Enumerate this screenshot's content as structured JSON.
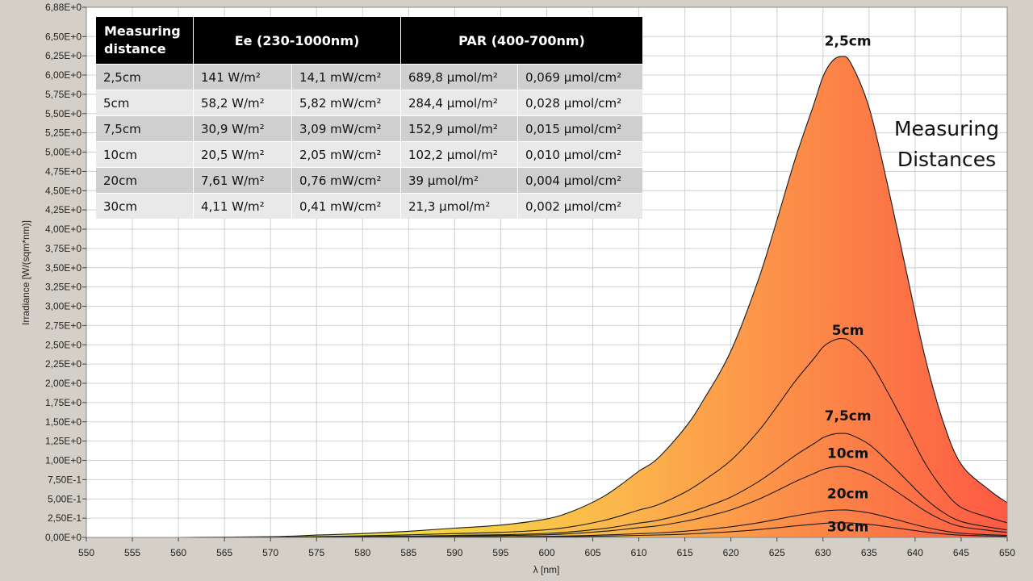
{
  "chart_data": {
    "type": "area",
    "xlabel": "λ [nm]",
    "ylabel": "Irradiance [W/(sqm*nm)]",
    "xlim": [
      550,
      650
    ],
    "ylim": [
      0,
      6.88
    ],
    "x_ticks": [
      "550",
      "555",
      "560",
      "565",
      "570",
      "575",
      "580",
      "585",
      "590",
      "595",
      "600",
      "605",
      "610",
      "615",
      "620",
      "625",
      "630",
      "635",
      "640",
      "645",
      "650"
    ],
    "y_ticks": [
      {
        "v": 0,
        "label": "0,00E+0"
      },
      {
        "v": 0.25,
        "label": "2,50E-1"
      },
      {
        "v": 0.5,
        "label": "5,00E-1"
      },
      {
        "v": 0.75,
        "label": "7,50E-1"
      },
      {
        "v": 1.0,
        "label": "1,00E+0"
      },
      {
        "v": 1.25,
        "label": "1,25E+0"
      },
      {
        "v": 1.5,
        "label": "1,50E+0"
      },
      {
        "v": 1.75,
        "label": "1,75E+0"
      },
      {
        "v": 2.0,
        "label": "2,00E+0"
      },
      {
        "v": 2.25,
        "label": "2,25E+0"
      },
      {
        "v": 2.5,
        "label": "2,50E+0"
      },
      {
        "v": 2.75,
        "label": "2,75E+0"
      },
      {
        "v": 3.0,
        "label": "3,00E+0"
      },
      {
        "v": 3.25,
        "label": "3,25E+0"
      },
      {
        "v": 3.5,
        "label": "3,50E+0"
      },
      {
        "v": 3.75,
        "label": "3,75E+0"
      },
      {
        "v": 4.0,
        "label": "4,00E+0"
      },
      {
        "v": 4.25,
        "label": "4,25E+0"
      },
      {
        "v": 4.5,
        "label": "4,50E+0"
      },
      {
        "v": 4.75,
        "label": "4,75E+0"
      },
      {
        "v": 5.0,
        "label": "5,00E+0"
      },
      {
        "v": 5.25,
        "label": "5,25E+0"
      },
      {
        "v": 5.5,
        "label": "5,50E+0"
      },
      {
        "v": 5.75,
        "label": "5,75E+0"
      },
      {
        "v": 6.0,
        "label": "6,00E+0"
      },
      {
        "v": 6.25,
        "label": "6,25E+0"
      },
      {
        "v": 6.5,
        "label": "6,50E+0"
      },
      {
        "v": 6.88,
        "label": "6,88E+0"
      }
    ],
    "grid": true,
    "x": [
      550,
      560,
      570,
      575,
      580,
      585,
      590,
      595,
      600,
      603,
      606,
      608,
      610,
      612,
      615,
      617,
      620,
      623,
      625,
      627,
      629,
      630,
      631,
      632,
      633,
      635,
      637,
      639,
      641,
      643,
      645,
      648,
      650
    ],
    "series": [
      {
        "name": "2,5cm",
        "values": [
          0,
          0,
          0.01,
          0.03,
          0.05,
          0.08,
          0.12,
          0.16,
          0.24,
          0.35,
          0.52,
          0.68,
          0.86,
          1.02,
          1.42,
          1.78,
          2.42,
          3.35,
          4.12,
          4.92,
          5.62,
          5.98,
          6.18,
          6.24,
          6.16,
          5.58,
          4.58,
          3.48,
          2.38,
          1.52,
          0.95,
          0.62,
          0.45
        ]
      },
      {
        "name": "5cm",
        "values": [
          0,
          0,
          0.004,
          0.012,
          0.02,
          0.033,
          0.05,
          0.066,
          0.1,
          0.145,
          0.215,
          0.28,
          0.355,
          0.42,
          0.585,
          0.735,
          1.0,
          1.38,
          1.7,
          2.03,
          2.32,
          2.47,
          2.55,
          2.58,
          2.54,
          2.3,
          1.89,
          1.44,
          0.98,
          0.63,
          0.39,
          0.26,
          0.19
        ]
      },
      {
        "name": "7,5cm",
        "values": [
          0,
          0,
          0.002,
          0.006,
          0.011,
          0.017,
          0.026,
          0.035,
          0.052,
          0.076,
          0.113,
          0.147,
          0.186,
          0.221,
          0.307,
          0.385,
          0.524,
          0.725,
          0.891,
          1.065,
          1.216,
          1.294,
          1.337,
          1.35,
          1.333,
          1.208,
          0.991,
          0.753,
          0.515,
          0.329,
          0.206,
          0.134,
          0.097
        ]
      },
      {
        "name": "10cm",
        "values": [
          0,
          0,
          0.001,
          0.004,
          0.007,
          0.012,
          0.018,
          0.024,
          0.035,
          0.052,
          0.077,
          0.1,
          0.127,
          0.15,
          0.209,
          0.262,
          0.357,
          0.494,
          0.607,
          0.725,
          0.828,
          0.881,
          0.91,
          0.92,
          0.908,
          0.822,
          0.675,
          0.513,
          0.351,
          0.224,
          0.14,
          0.091,
          0.066
        ]
      },
      {
        "name": "20cm",
        "values": [
          0,
          0,
          0.0006,
          0.002,
          0.003,
          0.005,
          0.007,
          0.009,
          0.014,
          0.02,
          0.03,
          0.039,
          0.049,
          0.058,
          0.081,
          0.102,
          0.138,
          0.191,
          0.235,
          0.281,
          0.321,
          0.341,
          0.352,
          0.356,
          0.352,
          0.318,
          0.261,
          0.198,
          0.136,
          0.087,
          0.054,
          0.035,
          0.026
        ]
      },
      {
        "name": "30cm",
        "values": [
          0,
          0,
          0.0003,
          0.001,
          0.0015,
          0.0025,
          0.004,
          0.005,
          0.008,
          0.011,
          0.016,
          0.021,
          0.026,
          0.031,
          0.043,
          0.054,
          0.074,
          0.102,
          0.125,
          0.15,
          0.171,
          0.182,
          0.188,
          0.19,
          0.187,
          0.17,
          0.139,
          0.106,
          0.072,
          0.046,
          0.029,
          0.019,
          0.014
        ]
      }
    ],
    "curve_labels": [
      {
        "text": "2,5cm",
        "x": 632,
        "y": 6.38
      },
      {
        "text": "5cm",
        "x": 632,
        "y": 2.63
      },
      {
        "text": "7,5cm",
        "x": 632,
        "y": 1.52
      },
      {
        "text": "10cm",
        "x": 632,
        "y": 1.03
      },
      {
        "text": "20cm",
        "x": 632,
        "y": 0.51
      },
      {
        "text": "30cm",
        "x": 632,
        "y": 0.08
      }
    ],
    "annotation": [
      "Measuring",
      "Distances"
    ],
    "colors": {
      "fill_left": "#f2ee38",
      "fill_mid": "#fbb64c",
      "fill_right": "#fd5a44",
      "plot_bg": "#ffffff",
      "grid": "#d0d0d0",
      "frame": "#d4d0c8"
    }
  },
  "table": {
    "headers": {
      "distance": "Measuring distance",
      "ee": "Ee  (230-1000nm)",
      "par": "PAR (400-700nm)"
    },
    "rows": [
      [
        "2,5cm",
        "141 W/m²",
        "14,1 mW/cm²",
        "689,8 µmol/m²",
        "0,069 µmol/cm²"
      ],
      [
        "5cm",
        "58,2 W/m²",
        "5,82 mW/cm²",
        "284,4 µmol/m²",
        "0,028 µmol/cm²"
      ],
      [
        "7,5cm",
        "30,9 W/m²",
        "3,09 mW/cm²",
        "152,9 µmol/m²",
        "0,015 µmol/cm²"
      ],
      [
        "10cm",
        "20,5 W/m²",
        "2,05 mW/cm²",
        "102,2 µmol/m²",
        "0,010 µmol/cm²"
      ],
      [
        "20cm",
        "7,61 W/m²",
        "0,76 mW/cm²",
        "39 µmol/m²",
        "0,004 µmol/cm²"
      ],
      [
        "30cm",
        "4,11 W/m²",
        "0,41 mW/cm²",
        "21,3 µmol/m²",
        "0,002 µmol/cm²"
      ]
    ]
  }
}
